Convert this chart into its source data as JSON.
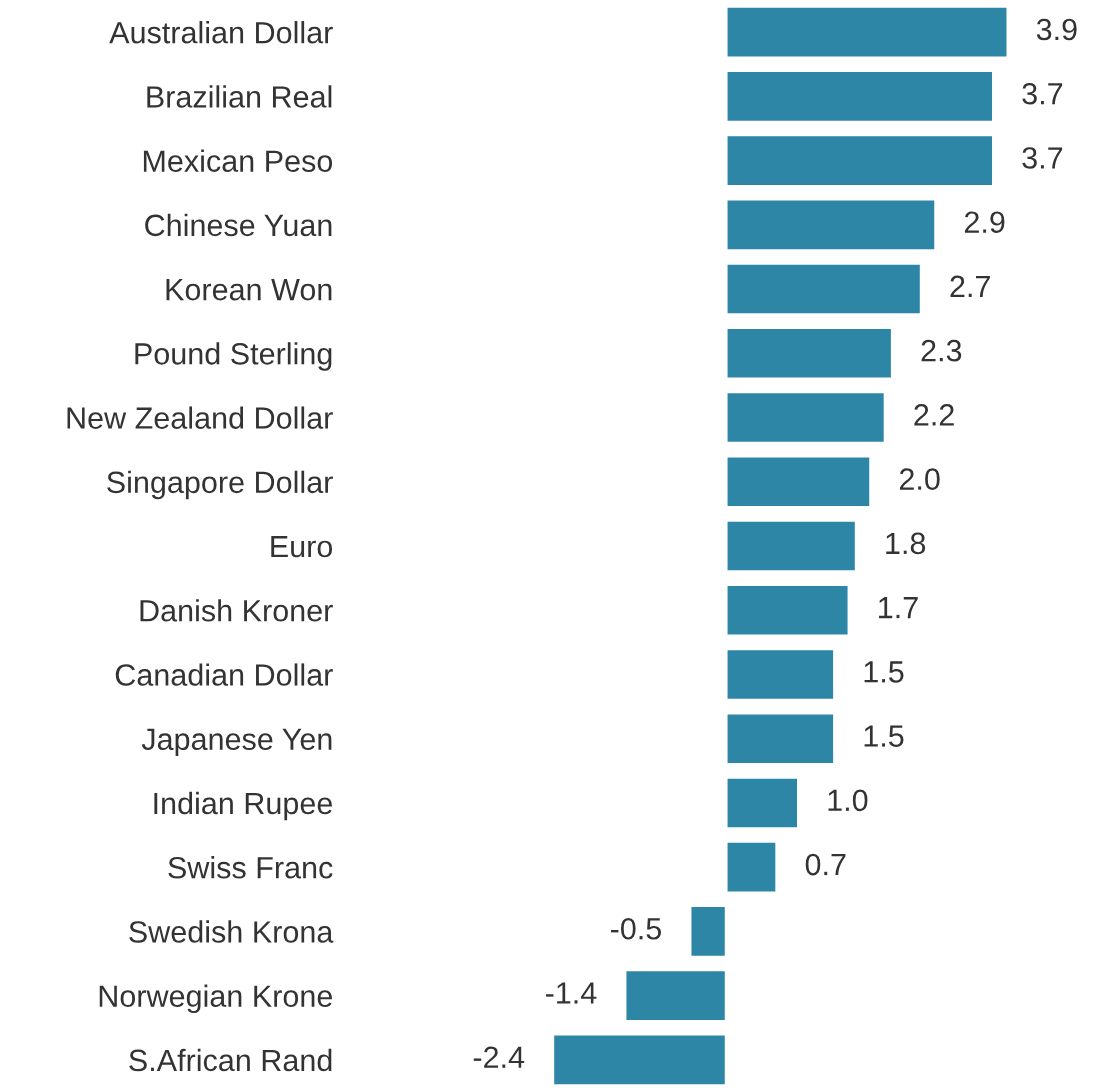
{
  "chart_data": {
    "type": "bar",
    "orientation": "horizontal",
    "categories": [
      "Australian Dollar",
      "Brazilian Real",
      "Mexican Peso",
      "Chinese Yuan",
      "Korean Won",
      "Pound Sterling",
      "New Zealand Dollar",
      "Singapore Dollar",
      "Euro",
      "Danish Kroner",
      "Canadian Dollar",
      "Japanese Yen",
      "Indian Rupee",
      "Swiss Franc",
      "Swedish Krona",
      "Norwegian Krone",
      "S.African Rand"
    ],
    "values": [
      3.9,
      3.7,
      3.7,
      2.9,
      2.7,
      2.3,
      2.2,
      2.0,
      1.8,
      1.7,
      1.5,
      1.5,
      1.0,
      0.7,
      -0.5,
      -1.4,
      -2.4
    ],
    "value_labels": [
      "3.9",
      "3.7",
      "3.7",
      "2.9",
      "2.7",
      "2.3",
      "2.2",
      "2.0",
      "1.8",
      "1.7",
      "1.5",
      "1.5",
      "1.0",
      "0.7",
      "-0.5",
      "-1.4",
      "-2.4"
    ],
    "color": "#2e86a6",
    "grid": false,
    "legend": false
  }
}
